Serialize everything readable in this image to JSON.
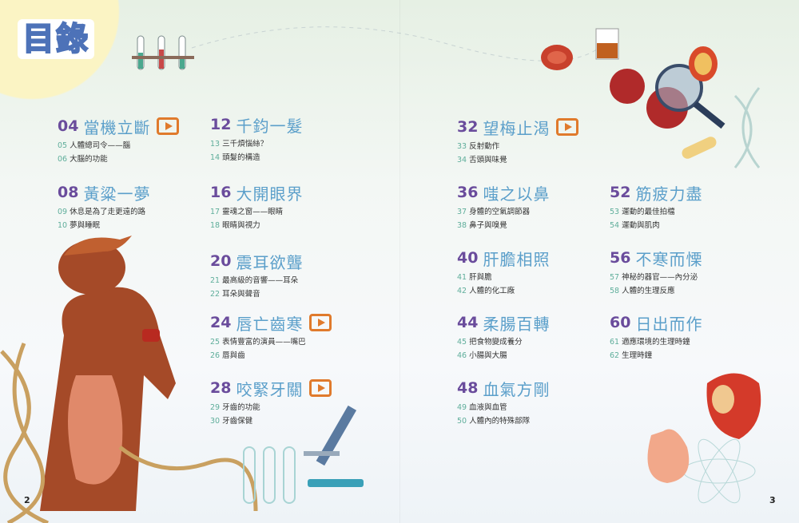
{
  "page_title": "目錄",
  "page_numbers": {
    "left": "2",
    "right": "3"
  },
  "colors": {
    "chapter_number": "#6a4c9c",
    "chapter_title": "#5b9fca",
    "sub_number": "#5fae9b",
    "video_icon": "#e07a2c"
  },
  "chapters": [
    {
      "num": "04",
      "title": "當機立斷",
      "video": true,
      "subs": [
        {
          "n": "05",
          "t": "人體總司令——腦"
        },
        {
          "n": "06",
          "t": "大腦的功能"
        }
      ]
    },
    {
      "num": "08",
      "title": "黃粱一夢",
      "video": false,
      "subs": [
        {
          "n": "09",
          "t": "休息是為了走更遠的路"
        },
        {
          "n": "10",
          "t": "夢與睡眠"
        }
      ]
    },
    {
      "num": "12",
      "title": "千鈞一髮",
      "video": false,
      "subs": [
        {
          "n": "13",
          "t": "三千煩惱絲？"
        },
        {
          "n": "14",
          "t": "頭髮的構造"
        }
      ]
    },
    {
      "num": "16",
      "title": "大開眼界",
      "video": false,
      "subs": [
        {
          "n": "17",
          "t": "靈魂之窗——眼睛"
        },
        {
          "n": "18",
          "t": "眼睛與視力"
        }
      ]
    },
    {
      "num": "20",
      "title": "震耳欲聾",
      "video": false,
      "subs": [
        {
          "n": "21",
          "t": "最高級的音響——耳朵"
        },
        {
          "n": "22",
          "t": "耳朵與聲音"
        }
      ]
    },
    {
      "num": "24",
      "title": "唇亡齒寒",
      "video": true,
      "subs": [
        {
          "n": "25",
          "t": "表情豐富的演員——嘴巴"
        },
        {
          "n": "26",
          "t": "唇與齒"
        }
      ]
    },
    {
      "num": "28",
      "title": "咬緊牙關",
      "video": true,
      "subs": [
        {
          "n": "29",
          "t": "牙齒的功能"
        },
        {
          "n": "30",
          "t": "牙齒保健"
        }
      ]
    },
    {
      "num": "32",
      "title": "望梅止渴",
      "video": true,
      "subs": [
        {
          "n": "33",
          "t": "反射動作"
        },
        {
          "n": "34",
          "t": "舌頭與味覺"
        }
      ]
    },
    {
      "num": "36",
      "title": "嗤之以鼻",
      "video": false,
      "subs": [
        {
          "n": "37",
          "t": "身體的空氣調節器"
        },
        {
          "n": "38",
          "t": "鼻子與嗅覺"
        }
      ]
    },
    {
      "num": "40",
      "title": "肝膽相照",
      "video": false,
      "subs": [
        {
          "n": "41",
          "t": "肝與膽"
        },
        {
          "n": "42",
          "t": "人體的化工廠"
        }
      ]
    },
    {
      "num": "44",
      "title": "柔腸百轉",
      "video": false,
      "subs": [
        {
          "n": "45",
          "t": "把食物變成養分"
        },
        {
          "n": "46",
          "t": "小腸與大腸"
        }
      ]
    },
    {
      "num": "48",
      "title": "血氣方剛",
      "video": false,
      "subs": [
        {
          "n": "49",
          "t": "血液與血管"
        },
        {
          "n": "50",
          "t": "人體內的特殊部隊"
        }
      ]
    },
    {
      "num": "52",
      "title": "筋疲力盡",
      "video": false,
      "subs": [
        {
          "n": "53",
          "t": "運動的最佳拍檔"
        },
        {
          "n": "54",
          "t": "運動與肌肉"
        }
      ]
    },
    {
      "num": "56",
      "title": "不寒而慄",
      "video": false,
      "subs": [
        {
          "n": "57",
          "t": "神秘的器官——內分泌"
        },
        {
          "n": "58",
          "t": "人體的生理反應"
        }
      ]
    },
    {
      "num": "60",
      "title": "日出而作",
      "video": false,
      "subs": [
        {
          "n": "61",
          "t": "適應環境的生理時鐘"
        },
        {
          "n": "62",
          "t": "生理時鐘"
        }
      ]
    }
  ]
}
